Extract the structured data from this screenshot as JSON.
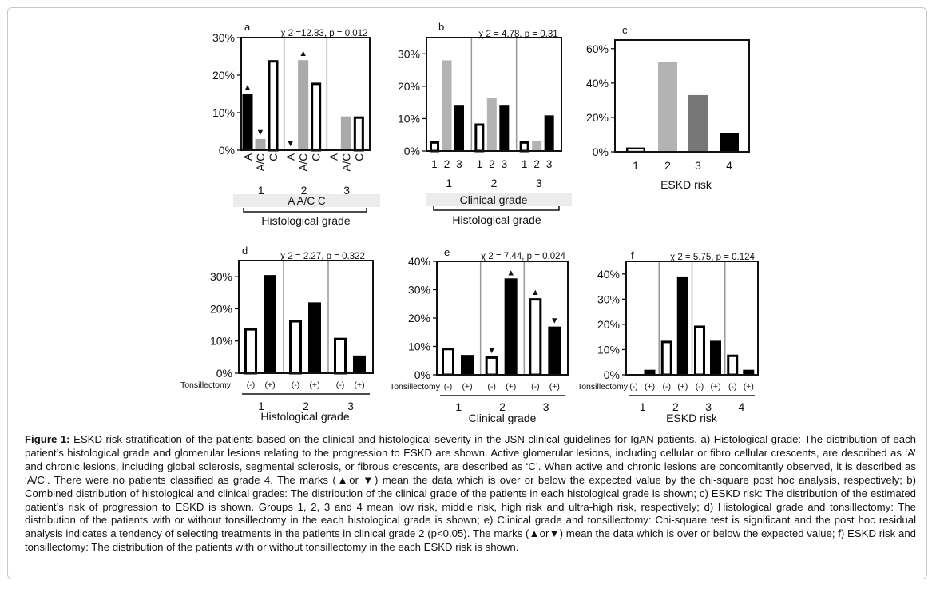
{
  "caption": {
    "label": "Figure 1:",
    "text": " ESKD risk stratification of the patients based on the clinical and histological severity in the JSN clinical guidelines for IgAN patients. a) Histological grade: The distribution of each patient’s histological grade and glomerular lesions relating to the progression to ESKD are shown. Active glomerular lesions, including cellular or fibro cellular crescents, are described as ‘A’ and chronic lesions, including global sclerosis, segmental sclerosis, or fibrous crescents, are described as ‘C’. When active and chronic lesions are concomitantly observed, it is described as ‘A/C’. There were no patients classified as grade 4. The marks (▲or ▼) mean the data which is over or below the expected value by the chi-square post hoc analysis, respectively; b) Combined distribution of histological and clinical grades: The distribution of the clinical grade of the patients in each histological grade is shown; c) ESKD risk: The distribution of the estimated patient’s risk of progression to ESKD is shown. Groups 1, 2, 3 and 4 mean low risk, middle risk, high risk and ultra-high risk, respectively; d) Histological grade and tonsillectomy: The distribution of the patients with or without tonsillectomy in the each histological grade is shown; e) Clinical grade and tonsillectomy: Chi-square test is significant and the post hoc residual analysis indicates a tendency of selecting treatments in the patients in clinical grade 2 (p<0.05). The marks (▲or▼) mean the data which is over or below the expected value; f) ESKD risk and tonsillectomy: The distribution of the patients with or without tonsillectomy in the each ESKD risk is shown."
  },
  "chart_data": [
    {
      "id": "a",
      "type": "bar",
      "panel_label": "a",
      "stat": "χ 2 =12.83, p = 0.012",
      "ylim": [
        0,
        30
      ],
      "yticks": [
        "0%",
        "10%",
        "20%",
        "30%"
      ],
      "groups": [
        "1",
        "2",
        "3"
      ],
      "categories": [
        "A",
        "A/C",
        "C"
      ],
      "values": [
        [
          15,
          3,
          24
        ],
        [
          0,
          24,
          18
        ],
        [
          0,
          9,
          9
        ]
      ],
      "marks": [
        [
          "▲",
          "▼",
          ""
        ],
        [
          "▼",
          "▲",
          ""
        ],
        [
          "",
          "",
          ""
        ]
      ],
      "legend_row": "A  A/C  C",
      "xlabel": "Histological grade"
    },
    {
      "id": "b",
      "type": "bar",
      "panel_label": "b",
      "stat": "χ 2 = 4.78, p = 0.31",
      "ylim": [
        0,
        35
      ],
      "yticks": [
        "0%",
        "10%",
        "20%",
        "30%"
      ],
      "groups": [
        "1",
        "2",
        "3"
      ],
      "categories": [
        "1",
        "2",
        "3"
      ],
      "values": [
        [
          3,
          28,
          14
        ],
        [
          8.5,
          16.5,
          14
        ],
        [
          3,
          3,
          11
        ]
      ],
      "legend_row": "Clinical grade",
      "xlabel": "Histological grade"
    },
    {
      "id": "c",
      "type": "bar",
      "panel_label": "c",
      "ylim": [
        0,
        65
      ],
      "yticks": [
        "0%",
        "20%",
        "40%",
        "60%"
      ],
      "categories": [
        "1",
        "2",
        "3",
        "4"
      ],
      "values": [
        2.5,
        52,
        33,
        11
      ],
      "xlabel": "ESKD risk"
    },
    {
      "id": "d",
      "type": "bar",
      "panel_label": "d",
      "stat": "χ 2 = 2.27, p = 0.322",
      "ylim": [
        0,
        35
      ],
      "yticks": [
        "0%",
        "10%",
        "20%",
        "30%"
      ],
      "row_label": "Tonsillectomy",
      "groups": [
        "1",
        "2",
        "3"
      ],
      "categories": [
        "(-)",
        "(+)"
      ],
      "values": [
        [
          14,
          30.5
        ],
        [
          16.5,
          22
        ],
        [
          11,
          5.5
        ]
      ],
      "xlabel": "Histological grade"
    },
    {
      "id": "e",
      "type": "bar",
      "panel_label": "e",
      "stat": "χ 2 = 7.44, p = 0.024",
      "ylim": [
        0,
        40
      ],
      "yticks": [
        "0%",
        "10%",
        "20%",
        "30%",
        "40%"
      ],
      "row_label": "Tonsillectomy",
      "groups": [
        "1",
        "2",
        "3"
      ],
      "categories": [
        "(-)",
        "(+)"
      ],
      "values": [
        [
          9.5,
          7
        ],
        [
          6.5,
          34
        ],
        [
          27,
          17
        ]
      ],
      "marks": [
        [
          "",
          ""
        ],
        [
          "▼",
          "▲"
        ],
        [
          "▲",
          "▼"
        ]
      ],
      "xlabel": "Clinical grade"
    },
    {
      "id": "f",
      "type": "bar",
      "panel_label": "f",
      "stat": "χ 2 = 5.75, p = 0.124",
      "ylim": [
        0,
        45
      ],
      "yticks": [
        "0%",
        "10%",
        "20%",
        "30%",
        "40%"
      ],
      "row_label": "Tonsillectomy",
      "groups": [
        "1",
        "2",
        "3",
        "4"
      ],
      "categories": [
        "(-)",
        "(+)"
      ],
      "values": [
        [
          0,
          2
        ],
        [
          13.5,
          39
        ],
        [
          19.5,
          13.5
        ],
        [
          8,
          2
        ]
      ],
      "xlabel": "ESKD risk"
    }
  ]
}
